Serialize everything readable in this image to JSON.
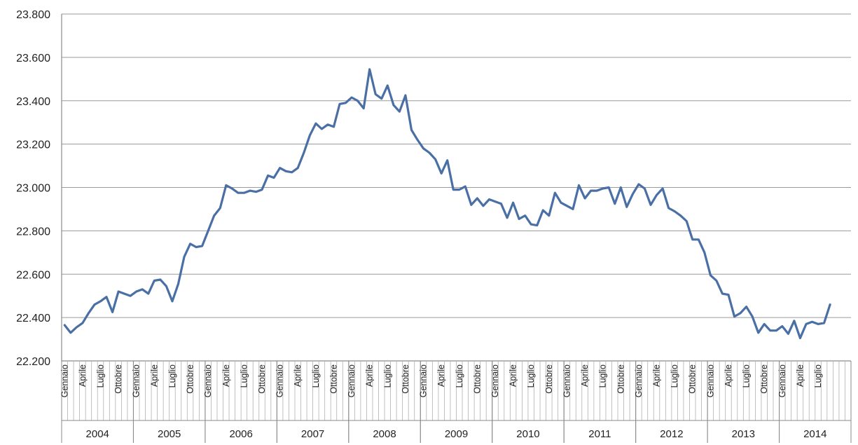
{
  "chart_data": {
    "type": "line",
    "title": "",
    "xlabel": "",
    "ylabel": "",
    "ylim": [
      22200,
      23800
    ],
    "y_ticks": [
      "22.200",
      "22.400",
      "22.600",
      "22.800",
      "23.000",
      "23.200",
      "23.400",
      "23.600",
      "23.800"
    ],
    "y_tick_values": [
      22200,
      22400,
      22600,
      22800,
      23000,
      23200,
      23400,
      23600,
      23800
    ],
    "month_tick_labels": [
      "Gennaio",
      "Aprile",
      "Luglio",
      "Ottobre"
    ],
    "years": [
      "2004",
      "2005",
      "2006",
      "2007",
      "2008",
      "2009",
      "2010",
      "2011",
      "2012",
      "2013",
      "2014"
    ],
    "grid": true,
    "line_color": "#4a6fa5",
    "series": [
      {
        "values": [
          22365,
          22330,
          22355,
          22375,
          22420,
          22460,
          22475,
          22495,
          22425,
          22520,
          22510,
          22500,
          22520,
          22530,
          22510,
          22570,
          22575,
          22545,
          22475,
          22555,
          22680,
          22740,
          22725,
          22730,
          22800,
          22870,
          22905,
          23010,
          22995,
          22975,
          22975,
          22985,
          22980,
          22990,
          23055,
          23045,
          23090,
          23075,
          23070,
          23090,
          23160,
          23240,
          23295,
          23270,
          23290,
          23280,
          23385,
          23390,
          23415,
          23400,
          23365,
          23545,
          23430,
          23410,
          23470,
          23380,
          23350,
          23425,
          23265,
          23220,
          23180,
          23160,
          23130,
          23065,
          23125,
          22990,
          22990,
          23005,
          22920,
          22950,
          22915,
          22945,
          22935,
          22925,
          22860,
          22930,
          22855,
          22870,
          22830,
          22825,
          22895,
          22870,
          22975,
          22930,
          22915,
          22900,
          23010,
          22950,
          22985,
          22985,
          22995,
          23000,
          22925,
          23000,
          22910,
          22970,
          23015,
          22995,
          22920,
          22965,
          22995,
          22905,
          22890,
          22870,
          22845,
          22760,
          22760,
          22700,
          22595,
          22570,
          22510,
          22505,
          22405,
          22420,
          22450,
          22405,
          22330,
          22370,
          22340,
          22340,
          22360,
          22325,
          22385,
          22305,
          22370,
          22380,
          22370,
          22375,
          22460
        ]
      }
    ]
  }
}
